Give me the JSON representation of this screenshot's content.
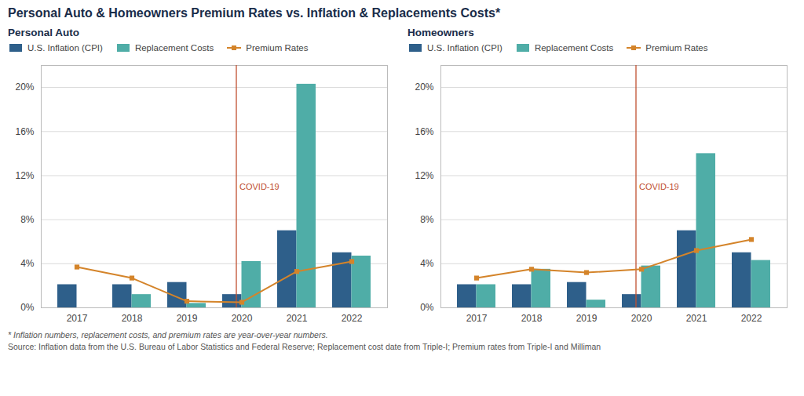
{
  "chart_data": [
    {
      "type": "bar",
      "title": "Personal Auto & Homeowners Premium Rates vs. Inflation & Replacements Costs*",
      "subtitle": "Personal Auto",
      "categories": [
        "2017",
        "2018",
        "2019",
        "2020",
        "2021",
        "2022"
      ],
      "series": [
        {
          "name": "U.S. Inflation (CPI)",
          "type": "bar",
          "color": "#2E5F8A",
          "values": [
            2.1,
            2.1,
            2.3,
            1.2,
            7.0,
            5.0
          ]
        },
        {
          "name": "Replacement Costs",
          "type": "bar",
          "color": "#4FADA7",
          "values": [
            0,
            1.2,
            0.4,
            4.2,
            20.3,
            4.7
          ]
        },
        {
          "name": "Premium Rates",
          "type": "line",
          "marker": "square",
          "color": "#D4842A",
          "values": [
            3.7,
            2.7,
            0.6,
            0.5,
            3.3,
            4.2
          ]
        }
      ],
      "ylim": [
        0,
        22
      ],
      "yticks": [
        {
          "value": 0,
          "label": "0%"
        },
        {
          "value": 4,
          "label": "4%"
        },
        {
          "value": 8,
          "label": "8%"
        },
        {
          "value": 12,
          "label": "12%"
        },
        {
          "value": 16,
          "label": "16%"
        },
        {
          "value": 20,
          "label": "20%"
        }
      ],
      "grid": true,
      "legend": "upper left",
      "annotations": [
        {
          "text": "COVID-19",
          "x": 2.9,
          "color": "#C05030"
        },
        {
          "text": "* Inflation numbers, replacement costs, and premium rates are year-over-year numbers."
        },
        {
          "text": "Source: Inflation data from the U.S. Bureau of Labor Statistics and Federal Reserve; Replacement cost date from Triple-I; Premium rates from Triple-I and Milliman"
        }
      ]
    },
    {
      "type": "bar",
      "subtitle": "Homeowners",
      "categories": [
        "2017",
        "2018",
        "2019",
        "2020",
        "2021",
        "2022"
      ],
      "series": [
        {
          "name": "U.S. Inflation (CPI)",
          "type": "bar",
          "color": "#2E5F8A",
          "values": [
            2.1,
            2.1,
            2.3,
            1.2,
            7.0,
            5.0
          ]
        },
        {
          "name": "Replacement Costs",
          "type": "bar",
          "color": "#4FADA7",
          "values": [
            2.1,
            3.5,
            0.7,
            3.8,
            14.0,
            4.3
          ]
        },
        {
          "name": "Premium Rates",
          "type": "line",
          "marker": "square",
          "color": "#D4842A",
          "values": [
            2.7,
            3.5,
            3.2,
            3.5,
            5.2,
            6.2
          ]
        }
      ],
      "ylim": [
        0,
        22
      ],
      "yticks": [
        {
          "value": 0,
          "label": "0%"
        },
        {
          "value": 4,
          "label": "4%"
        },
        {
          "value": 8,
          "label": "8%"
        },
        {
          "value": 12,
          "label": "12%"
        },
        {
          "value": 16,
          "label": "16%"
        },
        {
          "value": 20,
          "label": "20%"
        }
      ],
      "grid": true,
      "legend": "upper left",
      "annotations": [
        {
          "text": "COVID-19",
          "x": 2.9,
          "color": "#C05030"
        }
      ]
    }
  ]
}
